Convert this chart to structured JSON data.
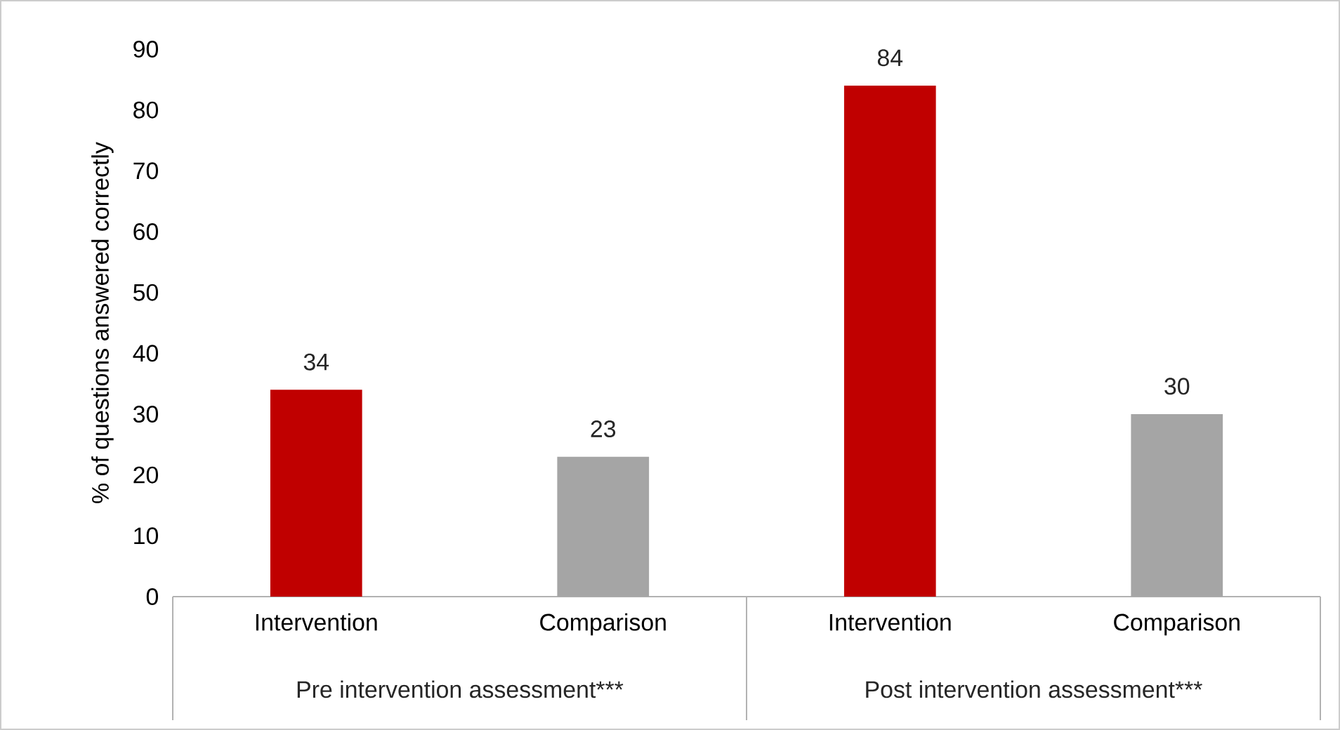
{
  "chart_data": {
    "type": "bar",
    "ylabel": "% of questions answered correctly",
    "categories": [
      "Intervention",
      "Comparison",
      "Intervention",
      "Comparison"
    ],
    "values": [
      34,
      23,
      84,
      30
    ],
    "colors": [
      "#c00000",
      "#a5a5a5",
      "#c00000",
      "#a5a5a5"
    ],
    "ylim": [
      0,
      90
    ],
    "yticks": [
      0,
      10,
      20,
      30,
      40,
      50,
      60,
      70,
      80,
      90
    ],
    "data_labels": true,
    "grid": false,
    "annotations": [
      "Pre intervention assessment***",
      "Post intervention assessment***"
    ]
  }
}
